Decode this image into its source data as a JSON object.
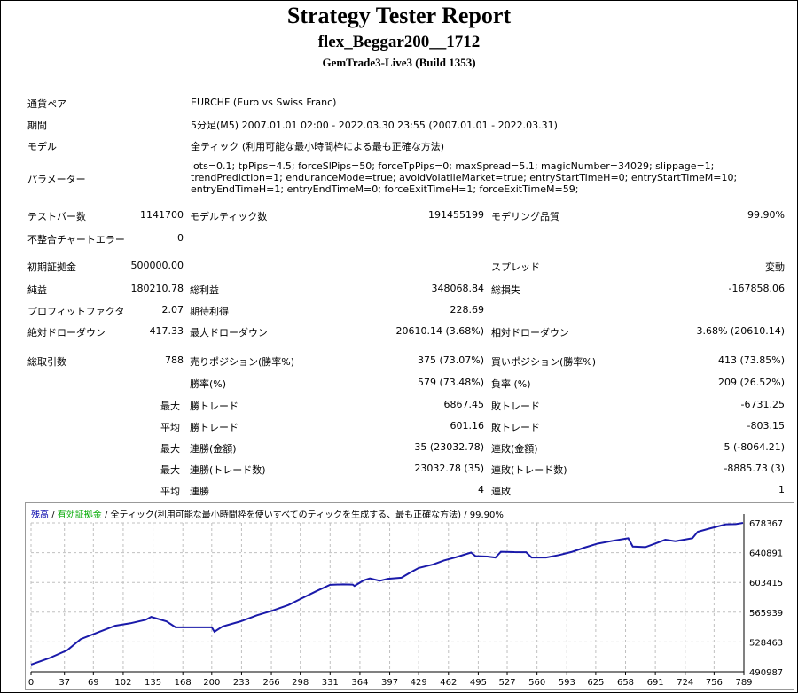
{
  "header": {
    "title": "Strategy Tester Report",
    "subtitle": "flex_Beggar200__1712",
    "server": "GemTrade3-Live3 (Build 1353)"
  },
  "info": [
    {
      "label": "通貨ペア",
      "value": "EURCHF (Euro vs Swiss Franc)"
    },
    {
      "label": "期間",
      "value": "5分足(M5) 2007.01.01 02:00 - 2022.03.30 23:55 (2007.01.01 - 2022.03.31)"
    },
    {
      "label": "モデル",
      "value": "全ティック (利用可能な最小時間枠による最も正確な方法)"
    },
    {
      "label": "パラメーター",
      "value": "lots=0.1; tpPips=4.5; forceSlPips=50; forceTpPips=0; maxSpread=5.1; magicNumber=34029; slippage=1; trendPrediction=1; enduranceMode=true; avoidVolatileMarket=true; entryStartTimeH=0; entryStartTimeM=10; entryEndTimeH=1; entryEndTimeM=0; forceExitTimeH=1; forceExitTimeM=59;"
    }
  ],
  "stats": [
    {
      "l1": "テストバー数",
      "v1": "1141700",
      "l2": "モデルティック数",
      "v2": "191455199",
      "l3": "モデリング品質",
      "v3": "99.90%"
    },
    {
      "l1": "不整合チャートエラー",
      "v1": "0"
    },
    {
      "l1": "初期証拠金",
      "v1": "500000.00",
      "l3": "スプレッド",
      "v3": "変動"
    },
    {
      "l1": "純益",
      "v1": "180210.78",
      "l2": "総利益",
      "v2": "348068.84",
      "l3": "総損失",
      "v3": "-167858.06"
    },
    {
      "l1": "プロフィットファクタ",
      "v1": "2.07",
      "l2": "期待利得",
      "v2": "228.69"
    },
    {
      "l1": "絶対ドローダウン",
      "v1": "417.33",
      "l2": "最大ドローダウン",
      "v2": "20610.14 (3.68%)",
      "l3": "相対ドローダウン",
      "v3": "3.68% (20610.14)"
    },
    {
      "l1": "総取引数",
      "v1": "788",
      "l2": "売りポジション(勝率%)",
      "v2": "375 (73.07%)",
      "l3": "買いポジション(勝率%)",
      "v3": "413 (73.85%)"
    },
    {
      "l2": "勝率(%)",
      "v2": "579 (73.48%)",
      "l3": "負率 (%)",
      "v3": "209 (26.52%)"
    },
    {
      "pre": "最大",
      "l2": "勝トレード",
      "v2": "6867.45",
      "l3": "敗トレード",
      "v3": "-6731.25"
    },
    {
      "pre": "平均",
      "l2": "勝トレード",
      "v2": "601.16",
      "l3": "敗トレード",
      "v3": "-803.15"
    },
    {
      "pre": "最大",
      "l2": "連勝(金額)",
      "v2": "35 (23032.78)",
      "l3": "連敗(金額)",
      "v3": "5 (-8064.21)"
    },
    {
      "pre": "最大",
      "l2": "連勝(トレード数)",
      "v2": "23032.78 (35)",
      "l3": "連敗(トレード数)",
      "v3": "-8885.73 (3)"
    },
    {
      "pre": "平均",
      "l2": "連勝",
      "v2": "4",
      "l3": "連敗",
      "v3": "1"
    }
  ],
  "chart_data": {
    "type": "line",
    "legend": {
      "balance": "残高",
      "sep": " / ",
      "equity": "有効証拠金",
      "model": "全ティック(利用可能な最小時間枠を使いすべてのティックを生成する、最も正確な方法)",
      "quality": "99.90%"
    },
    "colors": {
      "balance": "#0000aa",
      "equity": "#00aa00",
      "line": "#1a1aaa",
      "grid": "#c0c0c0"
    },
    "x_ticks": [
      0,
      37,
      69,
      102,
      135,
      168,
      200,
      233,
      266,
      298,
      331,
      364,
      397,
      429,
      462,
      495,
      527,
      560,
      593,
      625,
      658,
      691,
      724,
      756,
      789
    ],
    "y_ticks": [
      490987,
      528463,
      565939,
      603415,
      640891,
      678367
    ],
    "xlim": [
      0,
      789
    ],
    "ylim": [
      490987,
      678367
    ],
    "grid": true,
    "series": [
      {
        "x": [
          0,
          20,
          40,
          55,
          75,
          93,
          110,
          127,
          133,
          150,
          160,
          170,
          200,
          203,
          212,
          232,
          250,
          266,
          285,
          298,
          315,
          331,
          345,
          356,
          358,
          368,
          375,
          386,
          395,
          410,
          420,
          429,
          445,
          457,
          470,
          487,
          492,
          505,
          514,
          520,
          535,
          548,
          554,
          570,
          585,
          599,
          612,
          627,
          645,
          661,
          666,
          680,
          690,
          702,
          713,
          732,
          738,
          750,
          769,
          780,
          788
        ],
        "y": [
          500000,
          508000,
          518000,
          532000,
          541000,
          548900,
          552000,
          556400,
          560000,
          554400,
          546900,
          546900,
          546900,
          541300,
          548000,
          554400,
          562000,
          567500,
          575000,
          582400,
          592000,
          600400,
          601000,
          600700,
          599000,
          606000,
          608500,
          605500,
          608000,
          609300,
          616000,
          621600,
          626000,
          631000,
          635000,
          641000,
          636500,
          636000,
          634700,
          642000,
          641500,
          641400,
          634700,
          634700,
          638000,
          642000,
          647000,
          652200,
          656000,
          659000,
          648500,
          647800,
          652000,
          657100,
          655200,
          659000,
          667200,
          671000,
          676500,
          676800,
          678367
        ]
      }
    ]
  }
}
